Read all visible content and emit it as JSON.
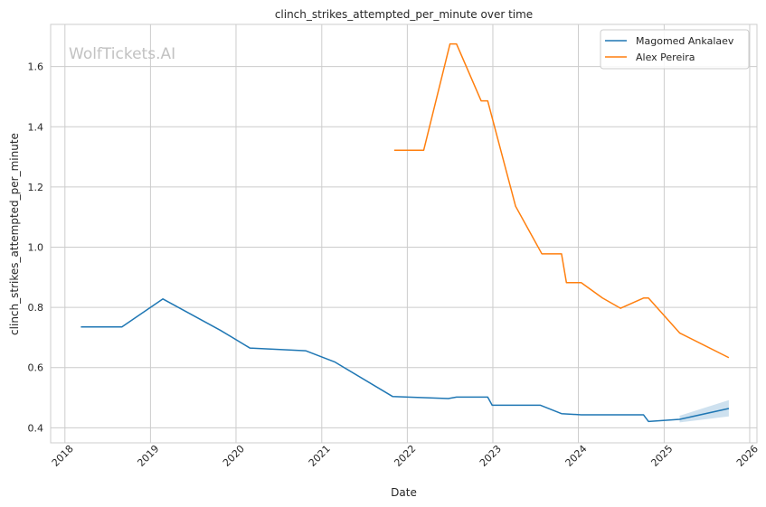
{
  "watermark": "WolfTickets.AI",
  "chart_data": {
    "type": "line",
    "title": "clinch_strikes_attempted_per_minute over time",
    "xlabel": "Date",
    "ylabel": "clinch_strikes_attempted_per_minute",
    "xlim": [
      "2017-11-01",
      "2026-02-01"
    ],
    "ylim": [
      0.35,
      1.74
    ],
    "x_ticks": [
      "2018",
      "2019",
      "2020",
      "2021",
      "2022",
      "2023",
      "2024",
      "2025",
      "2026"
    ],
    "y_ticks": [
      0.4,
      0.6,
      0.8,
      1.0,
      1.2,
      1.4,
      1.6
    ],
    "grid": true,
    "legend_position": "top-right",
    "series": [
      {
        "name": "Magomed Ankalaev",
        "color": "#1f77b4",
        "points": [
          [
            "2018-03-10",
            0.735
          ],
          [
            "2018-09-01",
            0.735
          ],
          [
            "2019-02-23",
            0.828
          ],
          [
            "2019-10-26",
            0.724
          ],
          [
            "2020-02-29",
            0.665
          ],
          [
            "2020-10-24",
            0.656
          ],
          [
            "2021-02-27",
            0.618
          ],
          [
            "2021-10-30",
            0.504
          ],
          [
            "2022-06-25",
            0.497
          ],
          [
            "2022-07-30",
            0.502
          ],
          [
            "2022-12-10",
            0.502
          ],
          [
            "2022-12-29",
            0.475
          ],
          [
            "2023-07-22",
            0.475
          ],
          [
            "2023-10-21",
            0.447
          ],
          [
            "2024-01-13",
            0.443
          ],
          [
            "2024-10-05",
            0.443
          ],
          [
            "2024-10-26",
            0.421
          ],
          [
            "2025-03-08",
            0.428
          ],
          [
            "2025-10-04",
            0.464
          ]
        ],
        "band": [
          [
            "2025-03-08",
            0.418,
            0.44
          ],
          [
            "2025-10-04",
            0.438,
            0.492
          ]
        ]
      },
      {
        "name": "Alex Pereira",
        "color": "#ff7f0e",
        "points": [
          [
            "2021-11-06",
            1.322
          ],
          [
            "2022-03-12",
            1.322
          ],
          [
            "2022-07-02",
            1.675
          ],
          [
            "2022-07-30",
            1.675
          ],
          [
            "2022-11-12",
            1.486
          ],
          [
            "2022-12-10",
            1.486
          ],
          [
            "2023-04-08",
            1.136
          ],
          [
            "2023-07-29",
            0.978
          ],
          [
            "2023-10-21",
            0.978
          ],
          [
            "2023-11-11",
            0.882
          ],
          [
            "2024-01-13",
            0.882
          ],
          [
            "2024-04-13",
            0.831
          ],
          [
            "2024-06-29",
            0.797
          ],
          [
            "2024-10-05",
            0.831
          ],
          [
            "2024-10-26",
            0.831
          ],
          [
            "2025-03-08",
            0.715
          ],
          [
            "2025-10-04",
            0.633
          ]
        ]
      }
    ]
  }
}
